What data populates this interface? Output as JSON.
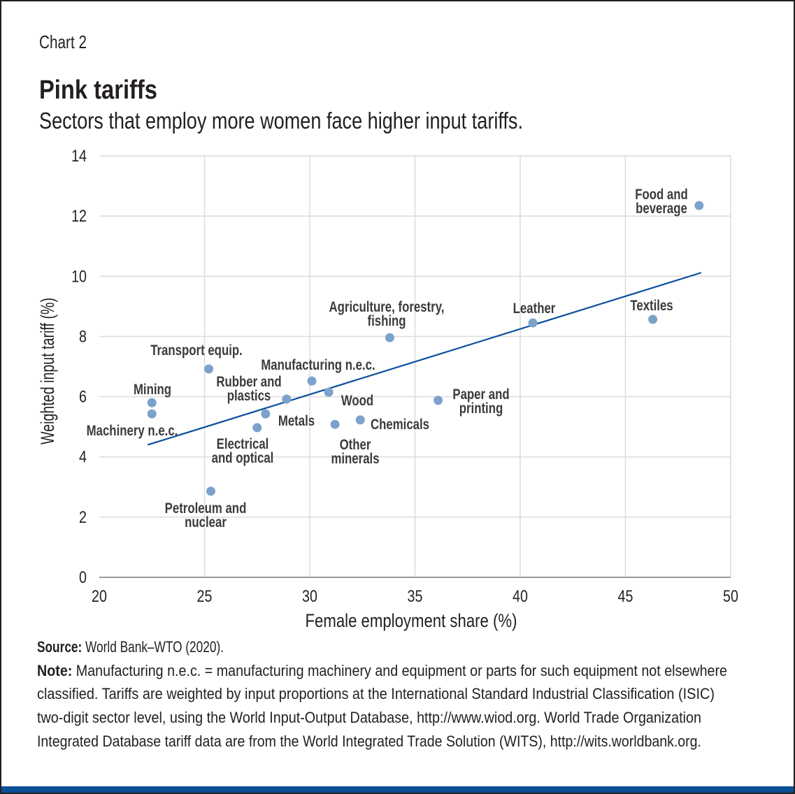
{
  "header": {
    "chart_number": "Chart 2",
    "title": "Pink tariffs",
    "subtitle": "Sectors that employ more women face higher input tariffs."
  },
  "footer": {
    "source_label": "Source:",
    "source_text": " World Bank–WTO (2020).",
    "note_label": "Note:",
    "note_lines": [
      " Manufacturing n.e.c. = manufacturing machinery and equipment or parts for such equipment not elsewhere",
      "classified. Tariffs are weighted by input proportions at the International Standard Industrial Classification (ISIC)",
      "two-digit sector level, using the World Input-Output Database, http://www.wiod.org. World Trade Organization",
      "Integrated Database tariff data are from the World Integrated Trade Solution (WITS), http://wits.worldbank.org."
    ]
  },
  "colors": {
    "points": "#7ba2cb",
    "trendline": "#0b4f9c",
    "bottom_bar": "#0d4f96",
    "grid": "#dcdcdc",
    "labels": "#3b3b3b"
  },
  "chart_data": {
    "type": "scatter",
    "xlabel": "Female employment share (%)",
    "ylabel": "Weighted input tariff (%)",
    "xlim": [
      20,
      50
    ],
    "ylim": [
      0,
      14
    ],
    "xticks": [
      "20",
      "25",
      "30",
      "35",
      "40",
      "45",
      "50"
    ],
    "yticks": [
      "0",
      "2",
      "4",
      "6",
      "8",
      "10",
      "12",
      "14"
    ],
    "grid": true,
    "points": [
      {
        "label": [
          "Food and",
          "beverage"
        ],
        "x": 48.5,
        "y": 12.35
      },
      {
        "label": [
          "Textiles"
        ],
        "x": 46.3,
        "y": 8.57
      },
      {
        "label": [
          "Leather"
        ],
        "x": 40.6,
        "y": 8.45
      },
      {
        "label": [
          "Agriculture, forestry,",
          "fishing"
        ],
        "x": 33.8,
        "y": 7.96
      },
      {
        "label": [
          "Transport equip."
        ],
        "x": 25.2,
        "y": 6.92
      },
      {
        "label": [
          "Manufacturing n.e.c."
        ],
        "x": 30.1,
        "y": 6.52
      },
      {
        "label": [
          "Wood"
        ],
        "x": 30.9,
        "y": 6.15
      },
      {
        "label": [
          "Rubber and",
          "plastics"
        ],
        "x": 28.9,
        "y": 5.92
      },
      {
        "label": [
          "Paper and",
          "printing"
        ],
        "x": 36.1,
        "y": 5.88
      },
      {
        "label": [
          "Mining"
        ],
        "x": 22.5,
        "y": 5.8
      },
      {
        "label": [
          "Machinery n.e.c."
        ],
        "x": 22.5,
        "y": 5.43
      },
      {
        "label": [
          "Metals"
        ],
        "x": 27.9,
        "y": 5.43
      },
      {
        "label": [
          "Chemicals"
        ],
        "x": 32.4,
        "y": 5.23
      },
      {
        "label": [
          "Other",
          "minerals"
        ],
        "x": 31.2,
        "y": 5.08
      },
      {
        "label": [
          "Electrical",
          "and optical"
        ],
        "x": 27.5,
        "y": 4.97
      },
      {
        "label": [
          "Petroleum and",
          "nuclear"
        ],
        "x": 25.3,
        "y": 2.86
      }
    ],
    "trendline": {
      "x": [
        22.3,
        48.6
      ],
      "y": [
        4.4,
        10.12
      ]
    }
  }
}
